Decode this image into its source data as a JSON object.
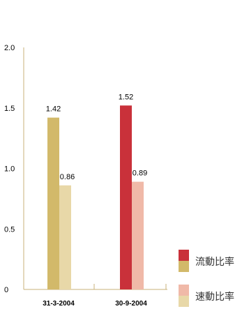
{
  "chart_data": {
    "type": "bar",
    "categories": [
      "31-3-2004",
      "30-9-2004"
    ],
    "series": [
      {
        "name": "流動比率",
        "values": [
          1.42,
          1.52
        ]
      },
      {
        "name": "速動比率",
        "values": [
          0.86,
          0.89
        ]
      }
    ],
    "data_labels": [
      [
        "1.42",
        "1.52"
      ],
      [
        "0.86",
        "0.89"
      ]
    ],
    "y_ticks": [
      "0",
      "0.5",
      "1.0",
      "1.5",
      "2.0"
    ],
    "ylim": [
      0,
      2.0
    ],
    "title": "",
    "xlabel": "",
    "ylabel": "",
    "grid": false,
    "legend_position": "bottom-right",
    "colors": {
      "primary_by_category": [
        "#d2b96a",
        "#c9313a"
      ],
      "secondary_by_category": [
        "#e8d8a8",
        "#f0b9a8"
      ],
      "axis": "#c9b27a"
    }
  },
  "legend": [
    {
      "label": "流動比率",
      "color_top": "#c9313a",
      "color_bottom": "#d2b96a"
    },
    {
      "label": "速動比率",
      "color_top": "#f0b9a8",
      "color_bottom": "#e8d8a8"
    }
  ]
}
